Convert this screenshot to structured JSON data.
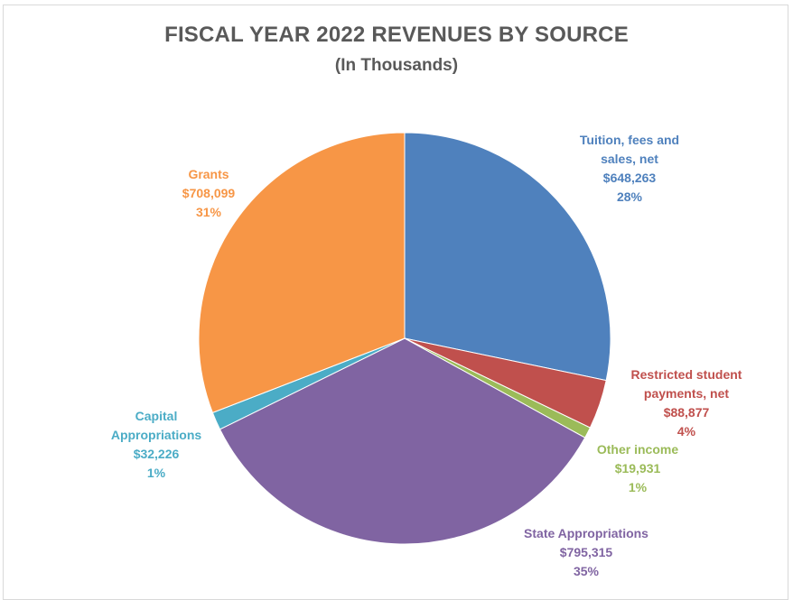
{
  "chart_data": {
    "type": "pie",
    "title": "FISCAL YEAR 2022 REVENUES BY SOURCE",
    "subtitle": "(In Thousands)",
    "slices": [
      {
        "name": "Tuition, fees and sales, net",
        "label_lines": [
          "Tuition, fees and",
          "sales, net"
        ],
        "value": 648263,
        "value_label": "$648,263",
        "percent_label": "28%",
        "color": "#4f81bd"
      },
      {
        "name": "Restricted student payments, net",
        "label_lines": [
          "Restricted student",
          "payments, net"
        ],
        "value": 88877,
        "value_label": "$88,877",
        "percent_label": "4%",
        "color": "#c0504d"
      },
      {
        "name": "Other income",
        "label_lines": [
          "Other income"
        ],
        "value": 19931,
        "value_label": "$19,931",
        "percent_label": "1%",
        "color": "#9bbb59"
      },
      {
        "name": "State Appropriations",
        "label_lines": [
          "State Appropriations"
        ],
        "value": 795315,
        "value_label": "$795,315",
        "percent_label": "35%",
        "color": "#8064a2"
      },
      {
        "name": "Capital Appropriations",
        "label_lines": [
          "Capital",
          "Appropriations"
        ],
        "value": 32226,
        "value_label": "$32,226",
        "percent_label": "1%",
        "color": "#4bacc6"
      },
      {
        "name": "Grants",
        "label_lines": [
          "Grants"
        ],
        "value": 708099,
        "value_label": "$708,099",
        "percent_label": "31%",
        "color": "#f79646"
      }
    ],
    "start_angle": "12 o'clock",
    "direction": "clockwise",
    "legend": "none"
  }
}
